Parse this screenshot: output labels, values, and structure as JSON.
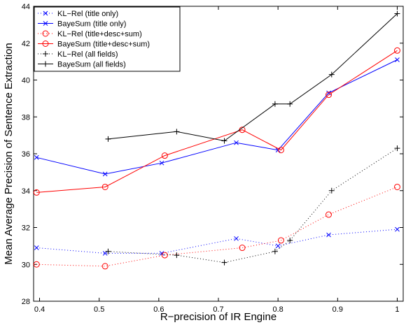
{
  "chart_data": {
    "type": "line",
    "xlabel": "R−precision of IR Engine",
    "ylabel": "Mean Average Precision of Sentence Extraction",
    "xlim": [
      0.39,
      1.01
    ],
    "ylim": [
      28,
      44
    ],
    "xticks": [
      0.4,
      0.5,
      0.6,
      0.7,
      0.8,
      0.9,
      1
    ],
    "xtick_labels": [
      "0.4",
      "0.5",
      "0.6",
      "0.7",
      "0.8",
      "0.9",
      "1"
    ],
    "yticks": [
      28,
      30,
      32,
      34,
      36,
      38,
      40,
      42,
      44
    ],
    "ytick_labels": [
      "28",
      "30",
      "32",
      "34",
      "36",
      "38",
      "40",
      "42",
      "44"
    ],
    "grid": false,
    "legend_position": "top-left",
    "series": [
      {
        "name": "KL−Rel (title only)",
        "color": "#0000ff",
        "marker": "x",
        "linestyle": "dotted",
        "x": [
          0.395,
          0.51,
          0.605,
          0.73,
          0.8,
          0.885,
          1.0
        ],
        "y": [
          30.9,
          30.6,
          30.6,
          31.4,
          31.0,
          31.6,
          31.9
        ]
      },
      {
        "name": "BayeSum (title only)",
        "color": "#0000ff",
        "marker": "x",
        "linestyle": "solid",
        "x": [
          0.395,
          0.51,
          0.605,
          0.73,
          0.8,
          0.885,
          1.0
        ],
        "y": [
          35.8,
          34.9,
          35.5,
          36.6,
          36.2,
          39.3,
          41.1
        ]
      },
      {
        "name": "KL−Rel (title+desc+sum)",
        "color": "#ff0000",
        "marker": "o",
        "linestyle": "dotted",
        "x": [
          0.395,
          0.51,
          0.61,
          0.74,
          0.805,
          0.885,
          1.0
        ],
        "y": [
          30.0,
          29.9,
          30.5,
          30.9,
          31.3,
          32.7,
          34.2
        ]
      },
      {
        "name": "BayeSum (title+desc+sum)",
        "color": "#ff0000",
        "marker": "o",
        "linestyle": "solid",
        "x": [
          0.395,
          0.51,
          0.61,
          0.74,
          0.805,
          0.885,
          1.0
        ],
        "y": [
          33.9,
          34.2,
          35.9,
          37.3,
          36.2,
          39.2,
          41.6
        ]
      },
      {
        "name": "KL−Rel (all fields)",
        "color": "#000000",
        "marker": "+",
        "linestyle": "dotted",
        "x": [
          0.515,
          0.63,
          0.71,
          0.795,
          0.82,
          0.89,
          1.0
        ],
        "y": [
          30.7,
          30.5,
          30.1,
          30.7,
          31.3,
          34.0,
          36.3
        ]
      },
      {
        "name": "BayeSum (all fields)",
        "color": "#000000",
        "marker": "+",
        "linestyle": "solid",
        "x": [
          0.515,
          0.63,
          0.71,
          0.795,
          0.82,
          0.89,
          1.0
        ],
        "y": [
          36.8,
          37.2,
          36.7,
          38.7,
          38.7,
          40.3,
          43.6
        ]
      }
    ]
  }
}
